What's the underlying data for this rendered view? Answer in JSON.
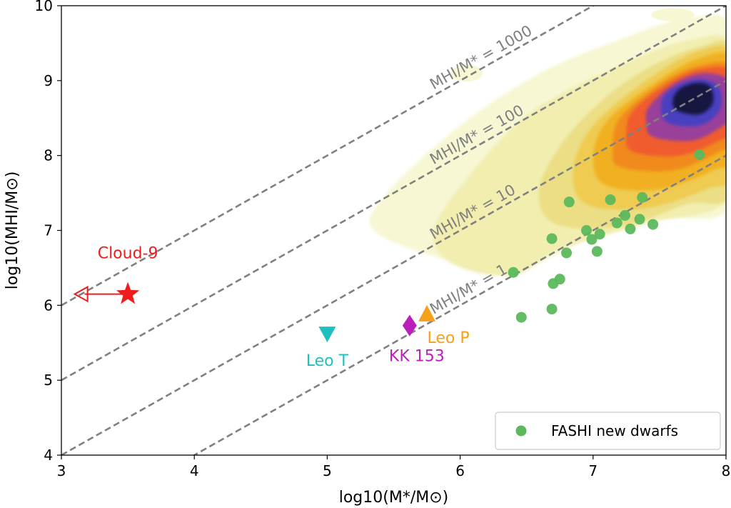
{
  "chart_data": {
    "type": "scatter",
    "xlabel": "log10(M*/M⊙)",
    "ylabel": "log10(MHI/M⊙)",
    "xlim": [
      3,
      8
    ],
    "ylim": [
      4,
      10
    ],
    "xticks": [
      "3",
      "4",
      "5",
      "6",
      "7",
      "8"
    ],
    "yticks": [
      "4",
      "5",
      "6",
      "7",
      "8",
      "9",
      "10"
    ],
    "grid": false,
    "guide_lines": [
      {
        "ratio": 1,
        "label": "MHI/M* = 1",
        "log_offset": 0
      },
      {
        "ratio": 10,
        "label": "MHI/M* = 10",
        "log_offset": 1
      },
      {
        "ratio": 100,
        "label": "MHI/M* = 100",
        "log_offset": 2
      },
      {
        "ratio": 1000,
        "label": "MHI/M* = 1000",
        "log_offset": 3
      }
    ],
    "density_contours": {
      "description": "filled density of the galaxy population",
      "peak": [
        7.77,
        8.78
      ],
      "colors": [
        "#f7f7d4",
        "#f1eeb0",
        "#ebde85",
        "#efcb51",
        "#f1b022",
        "#f08a1e",
        "#f05b2e",
        "#9a3f9a",
        "#4a3fc0",
        "#14133f"
      ]
    },
    "series": [
      {
        "name": "FASHI new dwarfs",
        "color": "#5cb85c",
        "marker": "circle",
        "points": [
          [
            7.8,
            8.01
          ],
          [
            6.82,
            7.38
          ],
          [
            7.13,
            7.41
          ],
          [
            7.37,
            7.44
          ],
          [
            6.95,
            7.0
          ],
          [
            7.05,
            6.95
          ],
          [
            7.24,
            7.2
          ],
          [
            7.35,
            7.15
          ],
          [
            7.18,
            7.1
          ],
          [
            7.28,
            7.02
          ],
          [
            7.45,
            7.08
          ],
          [
            6.69,
            6.89
          ],
          [
            6.99,
            6.88
          ],
          [
            7.03,
            6.72
          ],
          [
            6.8,
            6.7
          ],
          [
            6.4,
            6.44
          ],
          [
            6.75,
            6.35
          ],
          [
            6.7,
            6.29
          ],
          [
            6.46,
            5.84
          ],
          [
            6.69,
            5.95
          ]
        ]
      }
    ],
    "annotations": [
      {
        "label": "Cloud-9",
        "x": 3.5,
        "y": 6.15,
        "marker": "star",
        "color": "#ee1c1c",
        "arrow_to_x": 3.1,
        "note": "upper limit"
      },
      {
        "label": "Leo T",
        "x": 5.0,
        "y": 5.62,
        "marker": "triangle-down",
        "color": "#1ebfbf"
      },
      {
        "label": "KK 153",
        "x": 5.62,
        "y": 5.73,
        "marker": "diamond",
        "color": "#bb1fbb"
      },
      {
        "label": "Leo P",
        "x": 5.75,
        "y": 5.88,
        "marker": "triangle-up",
        "color": "#f5a21a"
      }
    ],
    "legend": {
      "position": "bottom-right",
      "entries": [
        "FASHI new dwarfs"
      ]
    }
  }
}
